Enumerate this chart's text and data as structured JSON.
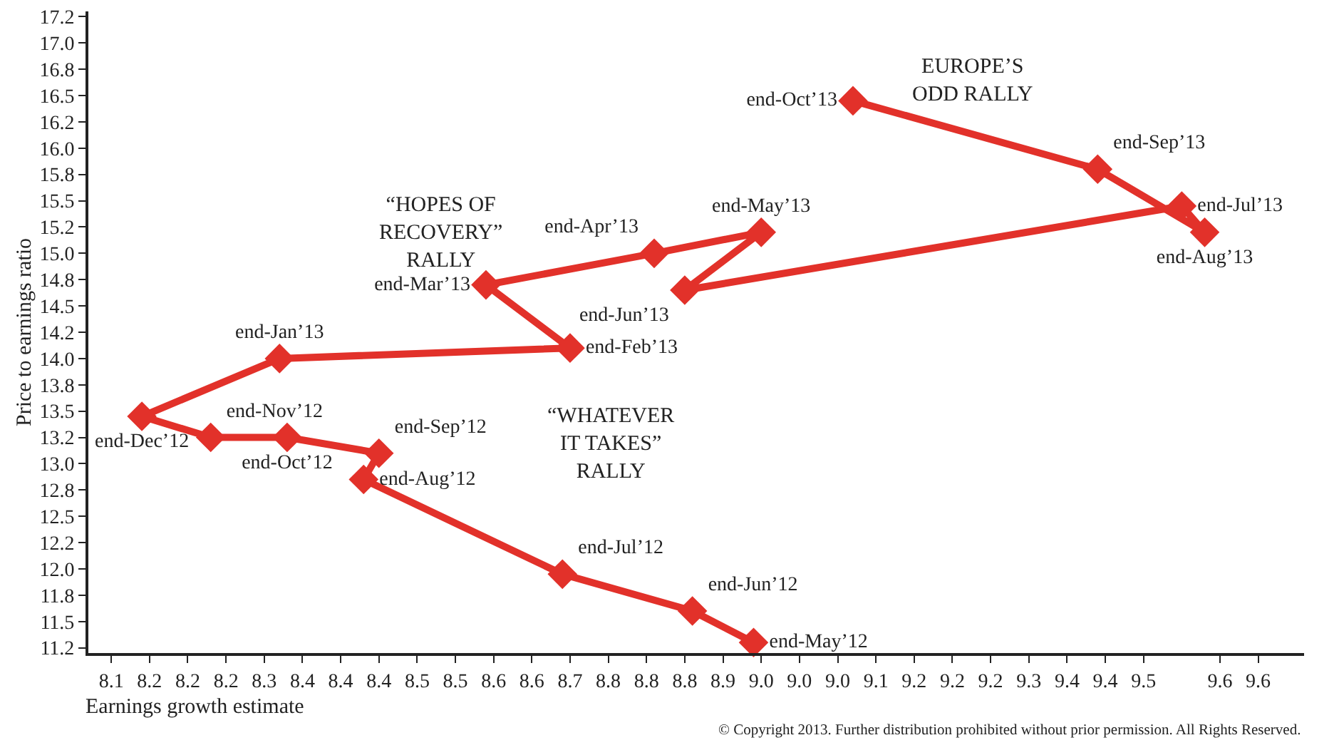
{
  "chart_data": {
    "type": "line",
    "xlabel": "Earnings growth estimate",
    "ylabel": "Price to earnings ratio",
    "xlim": [
      8.07,
      9.66
    ],
    "ylim": [
      11.2,
      17.3
    ],
    "xticks": [
      {
        "value": 8.1,
        "label": "8.1"
      },
      {
        "value": 8.15,
        "label": "8.2"
      },
      {
        "value": 8.2,
        "label": "8.2"
      },
      {
        "value": 8.25,
        "label": "8.2"
      },
      {
        "value": 8.3,
        "label": "8.3"
      },
      {
        "value": 8.35,
        "label": "8.4"
      },
      {
        "value": 8.4,
        "label": "8.4"
      },
      {
        "value": 8.45,
        "label": "8.4"
      },
      {
        "value": 8.5,
        "label": "8.5"
      },
      {
        "value": 8.55,
        "label": "8.5"
      },
      {
        "value": 8.6,
        "label": "8.6"
      },
      {
        "value": 8.65,
        "label": "8.6"
      },
      {
        "value": 8.7,
        "label": "8.7"
      },
      {
        "value": 8.75,
        "label": "8.8"
      },
      {
        "value": 8.8,
        "label": "8.8"
      },
      {
        "value": 8.85,
        "label": "8.8"
      },
      {
        "value": 8.9,
        "label": "8.9"
      },
      {
        "value": 8.95,
        "label": "9.0"
      },
      {
        "value": 9.0,
        "label": "9.0"
      },
      {
        "value": 9.05,
        "label": "9.0"
      },
      {
        "value": 9.1,
        "label": "9.1"
      },
      {
        "value": 9.15,
        "label": "9.2"
      },
      {
        "value": 9.2,
        "label": "9.2"
      },
      {
        "value": 9.25,
        "label": "9.2"
      },
      {
        "value": 9.3,
        "label": "9.3"
      },
      {
        "value": 9.35,
        "label": "9.4"
      },
      {
        "value": 9.4,
        "label": "9.4"
      },
      {
        "value": 9.45,
        "label": "9.5"
      },
      {
        "value": 9.55,
        "label": "9.6"
      },
      {
        "value": 9.6,
        "label": "9.6"
      }
    ],
    "yticks": [
      {
        "value": 11.25,
        "label": "11.2"
      },
      11.5,
      {
        "value": 11.75,
        "label": "11.8"
      },
      {
        "value": 12,
        "label": "12.0"
      },
      {
        "value": 12.25,
        "label": "12.2"
      },
      12.5,
      {
        "value": 12.75,
        "label": "12.8"
      },
      {
        "value": 13,
        "label": "13.0"
      },
      {
        "value": 13.25,
        "label": "13.2"
      },
      13.5,
      {
        "value": 13.75,
        "label": "13.8"
      },
      {
        "value": 14,
        "label": "14.0"
      },
      {
        "value": 14.25,
        "label": "14.2"
      },
      14.5,
      {
        "value": 14.75,
        "label": "14.8"
      },
      {
        "value": 15,
        "label": "15.0"
      },
      {
        "value": 15.25,
        "label": "15.2"
      },
      15.5,
      {
        "value": 15.75,
        "label": "15.8"
      },
      {
        "value": 16,
        "label": "16.0"
      },
      {
        "value": 16.25,
        "label": "16.2"
      },
      16.5,
      {
        "value": 16.75,
        "label": "16.8"
      },
      {
        "value": 17,
        "label": "17.0"
      },
      {
        "value": 17.25,
        "label": "17.2"
      }
    ],
    "marker": "diamond",
    "line_style": "solid",
    "series": [
      {
        "color": "#e2312a",
        "x": [
          8.94,
          8.86,
          8.69,
          8.43,
          8.45,
          8.33,
          8.23,
          8.14,
          8.32,
          8.7,
          8.59,
          8.81,
          8.95,
          8.85,
          9.5,
          9.53,
          9.39,
          9.07
        ],
        "values": [
          11.3,
          11.6,
          11.95,
          12.85,
          13.1,
          13.25,
          13.25,
          13.45,
          14.0,
          14.1,
          14.7,
          15.0,
          15.2,
          14.65,
          15.45,
          15.2,
          15.8,
          16.45
        ],
        "value_labels": [
          "end-May’12",
          "end-Jun’12",
          "end-Jul’12",
          "end-Aug’12",
          "end-Sep’12",
          "end-Oct’12",
          "end-Nov’12",
          "end-Dec’12",
          "end-Jan’13",
          "end-Feb’13",
          "end-Mar’13",
          "end-Apr’13",
          "end-May’13",
          "end-Jun’13",
          "end-Jul’13",
          "end-Aug’13",
          "end-Sep’13",
          "end-Oct’13"
        ]
      }
    ],
    "annotations": [
      "“WHATEVER\nIT TAKES”\nRALLY",
      "“HOPES OF\nRECOVERY”\nRALLY",
      "EUROPE’S\nODD RALLY",
      "© Copyright 2013. Further distribution prohibited without prior permission. All Rights Reserved."
    ]
  }
}
